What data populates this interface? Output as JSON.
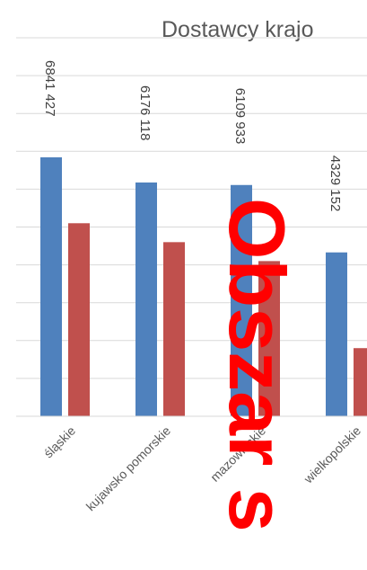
{
  "chart_data": {
    "type": "bar",
    "title": "Dostawcy krajo",
    "categories": [
      "śląskie",
      "kujawsko pomorskie",
      "mazowieckie",
      "wielkopolskie"
    ],
    "series": [
      {
        "values": [
          6841427,
          6176118,
          6109933,
          4329152
        ],
        "color": "#4f81bd",
        "show_labels": true
      },
      {
        "values": [
          5100000,
          4600000,
          4100000,
          1800000
        ],
        "color": "#c0504d",
        "show_labels": false
      }
    ],
    "data_labels": [
      "6841 427",
      "6176 118",
      "6109 933",
      "4329 152"
    ],
    "ylim": [
      0,
      10000000
    ],
    "grid_step": 1000000,
    "grid": true,
    "xlabel": "",
    "ylabel": ""
  },
  "watermark": {
    "text": "Obszar s",
    "color": "#ff0000"
  }
}
